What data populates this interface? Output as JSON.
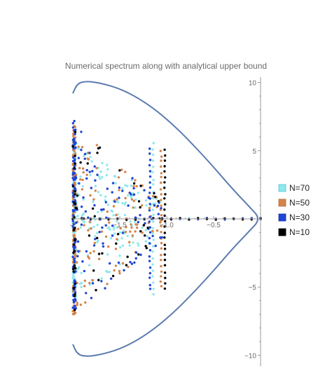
{
  "chart_data": {
    "type": "scatter",
    "title": "Numerical spectrum along with analytical upper bound",
    "xlabel": "",
    "ylabel": "",
    "xlim": [
      -2.0,
      0.0
    ],
    "ylim": [
      -10.8,
      10.8
    ],
    "x_ticks": [
      {
        "value": -2.0,
        "label": "-2"
      },
      {
        "value": -1.5,
        "label": "−1.5"
      },
      {
        "value": -1.0,
        "label": "−1.0"
      },
      {
        "value": -0.5,
        "label": "−0.5"
      }
    ],
    "y_ticks": [
      {
        "value": 10,
        "label": "10"
      },
      {
        "value": 5,
        "label": "5"
      },
      {
        "value": -5,
        "label": "−5"
      },
      {
        "value": -10,
        "label": "−10"
      }
    ],
    "axes_cross_at_x": 0,
    "legend_position": "right",
    "grid": false,
    "bound_curve": {
      "color": "#5b7bb0",
      "points": [
        [
          -2.0,
          9.2
        ],
        [
          -1.95,
          9.95
        ],
        [
          -1.85,
          10.1
        ],
        [
          -1.7,
          9.95
        ],
        [
          -1.5,
          9.55
        ],
        [
          -1.3,
          8.85
        ],
        [
          -1.1,
          7.9
        ],
        [
          -0.9,
          6.7
        ],
        [
          -0.7,
          5.3
        ],
        [
          -0.5,
          3.8
        ],
        [
          -0.3,
          2.2
        ],
        [
          -0.12,
          0.9
        ],
        [
          0.0,
          0.0
        ],
        [
          -0.12,
          -0.9
        ],
        [
          -0.3,
          -2.2
        ],
        [
          -0.5,
          -3.8
        ],
        [
          -0.7,
          -5.3
        ],
        [
          -0.9,
          -6.7
        ],
        [
          -1.1,
          -7.9
        ],
        [
          -1.3,
          -8.85
        ],
        [
          -1.5,
          -9.55
        ],
        [
          -1.7,
          -9.95
        ],
        [
          -1.85,
          -10.1
        ],
        [
          -1.95,
          -9.95
        ],
        [
          -2.0,
          -9.2
        ]
      ]
    },
    "series": [
      {
        "name": "N=70",
        "color": "#8ee8ee",
        "stroke": "#55c6cc",
        "half_height": 5.9,
        "segment_x": -1.145,
        "segment_half_height": 5.6
      },
      {
        "name": "N=50",
        "color": "#d4844a",
        "stroke": "#b86a32",
        "half_height": 7.0,
        "segment_x": -1.06,
        "segment_half_height": 5.0
      },
      {
        "name": "N=30",
        "color": "#1f45d8",
        "stroke": "#1431a8",
        "half_height": 7.2,
        "segment_x": -1.18,
        "segment_half_height": 5.2
      },
      {
        "name": "N=10",
        "color": "#000000",
        "stroke": "#000000",
        "half_height": 6.9,
        "segment_x": -1.02,
        "segment_half_height": 5.1
      }
    ]
  }
}
